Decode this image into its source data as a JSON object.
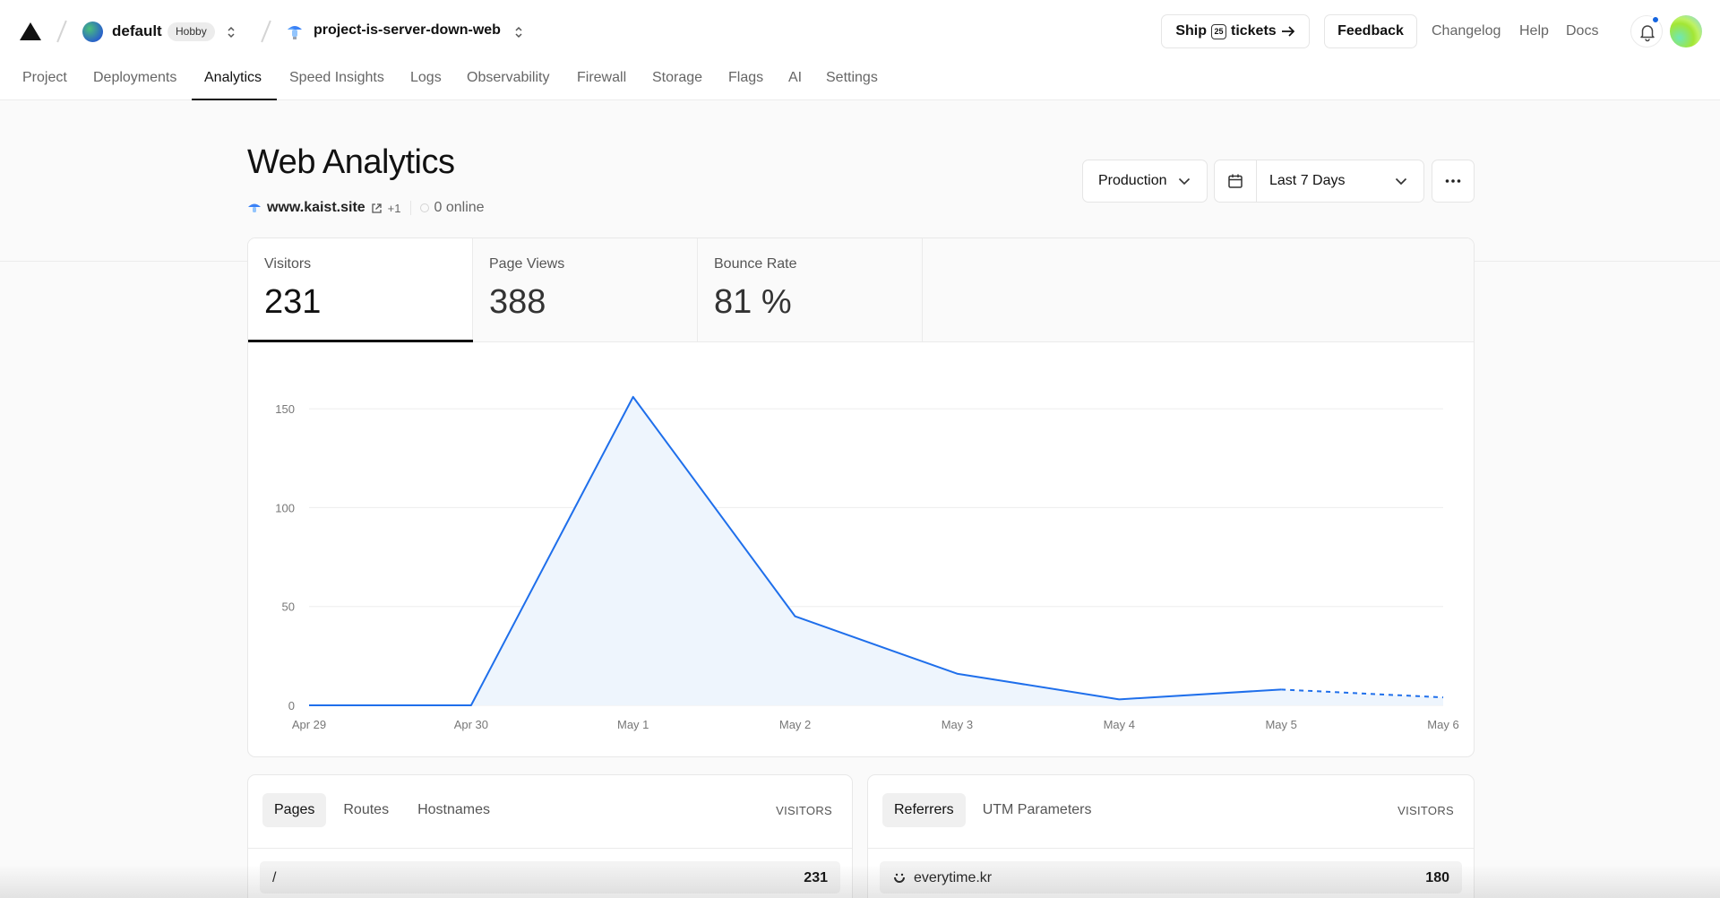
{
  "header": {
    "team": {
      "name": "default",
      "plan": "Hobby"
    },
    "project": {
      "name": "project-is-server-down-web"
    },
    "ship": {
      "prefix": "Ship",
      "count": "25",
      "suffix": "tickets"
    },
    "feedback_label": "Feedback",
    "links": [
      "Changelog",
      "Help",
      "Docs"
    ]
  },
  "nav_tabs": [
    {
      "label": "Project"
    },
    {
      "label": "Deployments"
    },
    {
      "label": "Analytics",
      "active": true
    },
    {
      "label": "Speed Insights"
    },
    {
      "label": "Logs"
    },
    {
      "label": "Observability"
    },
    {
      "label": "Firewall"
    },
    {
      "label": "Storage"
    },
    {
      "label": "Flags"
    },
    {
      "label": "AI"
    },
    {
      "label": "Settings"
    }
  ],
  "page": {
    "title": "Web Analytics",
    "site": "www.kaist.site",
    "site_more": "+1",
    "online": "0 online",
    "environment": "Production",
    "date_range": "Last 7 Days"
  },
  "metrics": [
    {
      "label": "Visitors",
      "value": "231",
      "active": true
    },
    {
      "label": "Page Views",
      "value": "388"
    },
    {
      "label": "Bounce Rate",
      "value": "81 %"
    }
  ],
  "chart_data": {
    "type": "area",
    "title": "",
    "xlabel": "",
    "ylabel": "",
    "categories": [
      "Apr 29",
      "Apr 30",
      "May 1",
      "May 2",
      "May 3",
      "May 4",
      "May 5",
      "May 6"
    ],
    "series": [
      {
        "values": [
          0,
          0,
          156,
          45,
          16,
          3,
          8,
          4
        ],
        "color": "#1f6feb",
        "dashed_last_segment": true
      }
    ],
    "yticks": [
      0,
      50,
      100,
      150
    ],
    "ylim": [
      0,
      165
    ],
    "grid": true
  },
  "pages_panel": {
    "tabs": [
      {
        "label": "Pages",
        "active": true
      },
      {
        "label": "Routes"
      },
      {
        "label": "Hostnames"
      }
    ],
    "column": "VISITORS",
    "rows": [
      {
        "label": "/",
        "value": "231"
      }
    ]
  },
  "referrers_panel": {
    "tabs": [
      {
        "label": "Referrers",
        "active": true
      },
      {
        "label": "UTM Parameters"
      }
    ],
    "column": "VISITORS",
    "rows": [
      {
        "label": "everytime.kr",
        "value": "180"
      }
    ]
  },
  "colors": {
    "accent": "#1f6feb",
    "notification": "#1565e0"
  }
}
